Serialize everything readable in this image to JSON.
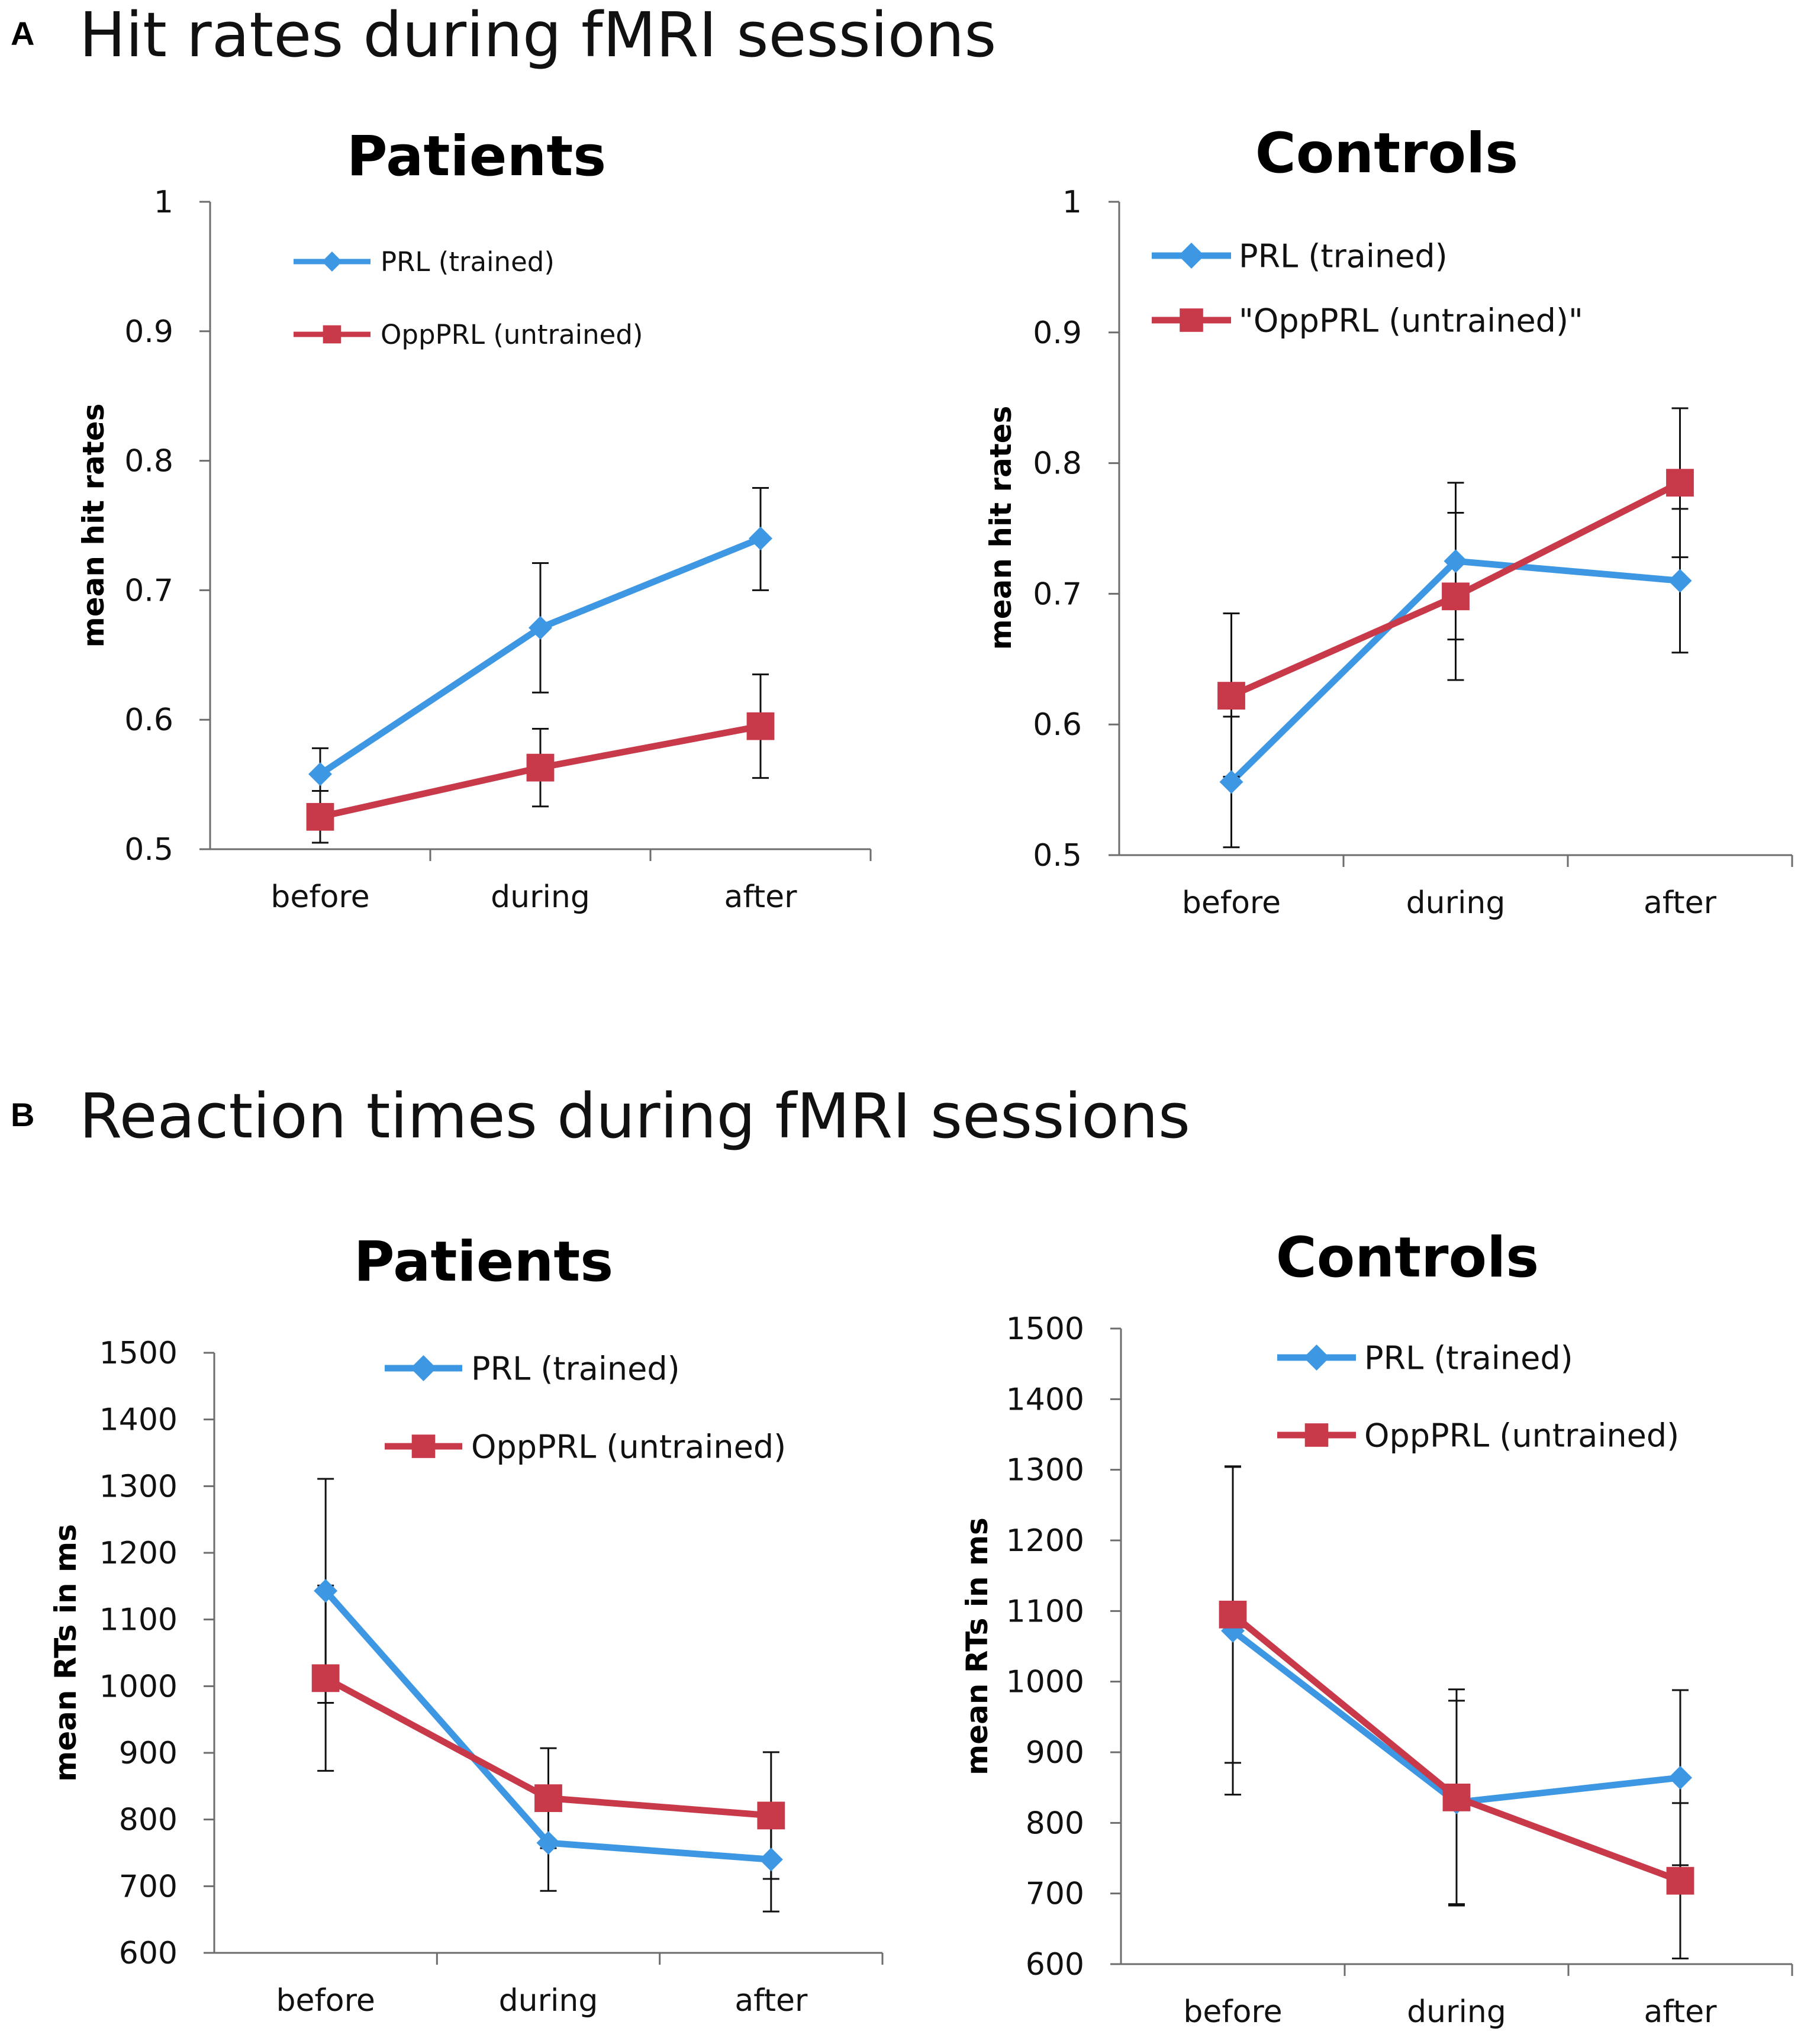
{
  "sections": [
    {
      "letter": "A",
      "title": "Hit rates during fMRI sessions"
    },
    {
      "letter": "B",
      "title": "Reaction times during fMRI sessions"
    }
  ],
  "colors": {
    "prl": "#3d97e3",
    "opp": "#c8394a",
    "axis": "#6d6d6d",
    "error": "#111111"
  },
  "chart_data": [
    {
      "type": "line",
      "title": "Patients",
      "xlabel": "",
      "ylabel": "mean hit rates",
      "categories": [
        "before",
        "during",
        "after"
      ],
      "ylim": [
        0.5,
        1
      ],
      "yticks": [
        0.5,
        0.6,
        0.7,
        0.8,
        0.9,
        1
      ],
      "ytick_labels": [
        "0.5",
        "0.6",
        "0.7",
        "0.8",
        "0.9",
        "1"
      ],
      "legend": "top-left",
      "series": [
        {
          "name": "PRL (trained)",
          "marker": "diamond",
          "values": [
            0.558,
            0.671,
            0.74
          ],
          "err_low": [
            0.545,
            0.621,
            0.7
          ],
          "err_high": [
            0.578,
            0.721,
            0.779
          ]
        },
        {
          "name": "OppPRL (untrained)",
          "marker": "square",
          "values": [
            0.525,
            0.563,
            0.595
          ],
          "err_low": [
            0.505,
            0.533,
            0.555
          ],
          "err_high": [
            0.545,
            0.593,
            0.635
          ]
        }
      ]
    },
    {
      "type": "line",
      "title": "Controls",
      "xlabel": "",
      "ylabel": "mean hit rates",
      "categories": [
        "before",
        "during",
        "after"
      ],
      "ylim": [
        0.5,
        1
      ],
      "yticks": [
        0.5,
        0.6,
        0.7,
        0.8,
        0.9,
        1
      ],
      "ytick_labels": [
        "0.5",
        "0.6",
        "0.7",
        "0.8",
        "0.9",
        "1"
      ],
      "legend": "top-left",
      "series": [
        {
          "name": "PRL (trained)",
          "marker": "diamond",
          "values": [
            0.556,
            0.725,
            0.71
          ],
          "err_low": [
            0.506,
            0.665,
            0.655
          ],
          "err_high": [
            0.606,
            0.785,
            0.765
          ]
        },
        {
          "name": "\"OppPRL (untrained)\"",
          "marker": "square",
          "values": [
            0.622,
            0.698,
            0.785
          ],
          "err_low": [
            0.56,
            0.634,
            0.728
          ],
          "err_high": [
            0.685,
            0.762,
            0.842
          ]
        }
      ]
    },
    {
      "type": "line",
      "title": "Patients",
      "xlabel": "",
      "ylabel": "mean RTs in ms",
      "categories": [
        "before",
        "during",
        "after"
      ],
      "ylim": [
        600,
        1500
      ],
      "yticks": [
        600,
        700,
        800,
        900,
        1000,
        1100,
        1200,
        1300,
        1400,
        1500
      ],
      "ytick_labels": [
        "600",
        "700",
        "800",
        "900",
        "1000",
        "1100",
        "1200",
        "1300",
        "1400",
        "1500"
      ],
      "legend": "top-center",
      "series": [
        {
          "name": "PRL (trained)",
          "marker": "diamond",
          "values": [
            1143,
            765,
            740
          ],
          "err_low": [
            975,
            693,
            662
          ],
          "err_high": [
            1311,
            837,
            818
          ]
        },
        {
          "name": "OppPRL (untrained)",
          "marker": "square",
          "values": [
            1012,
            832,
            806
          ],
          "err_low": [
            873,
            757,
            711
          ],
          "err_high": [
            1151,
            907,
            901
          ]
        }
      ]
    },
    {
      "type": "line",
      "title": "Controls",
      "xlabel": "",
      "ylabel": "mean RTs in ms",
      "categories": [
        "before",
        "during",
        "after"
      ],
      "ylim": [
        600,
        1500
      ],
      "yticks": [
        600,
        700,
        800,
        900,
        1000,
        1100,
        1200,
        1300,
        1400,
        1500
      ],
      "ytick_labels": [
        "600",
        "700",
        "800",
        "900",
        "1000",
        "1100",
        "1200",
        "1300",
        "1400",
        "1500"
      ],
      "legend": "top-center",
      "series": [
        {
          "name": "PRL (trained)",
          "marker": "diamond",
          "values": [
            1072,
            829,
            864
          ],
          "err_low": [
            840,
            685,
            740
          ],
          "err_high": [
            1304,
            973,
            988
          ]
        },
        {
          "name": "OppPRL (untrained)",
          "marker": "square",
          "values": [
            1095,
            836,
            718
          ],
          "err_low": [
            885,
            683,
            608
          ],
          "err_high": [
            1305,
            989,
            828
          ]
        }
      ]
    }
  ]
}
